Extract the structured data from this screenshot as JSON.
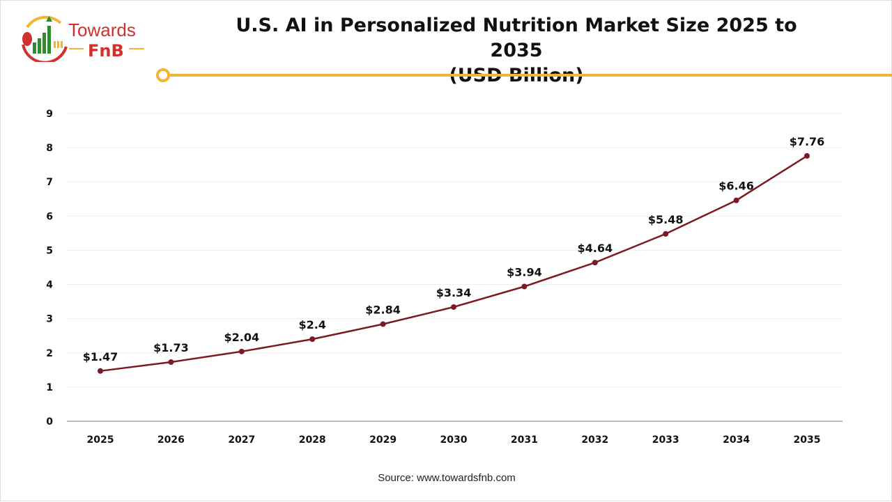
{
  "logo": {
    "text_top": "Towards",
    "text_bottom": "FnB"
  },
  "title_line1": "U.S. AI in Personalized Nutrition Market Size 2025 to 2035",
  "title_line2": "(USD Billion)",
  "source": "Source: www.towardsfnb.com",
  "colors": {
    "line": "#7b1a24",
    "accent": "#f2b533",
    "logo_red": "#d0312d",
    "logo_green": "#2e8b2e"
  },
  "chart_data": {
    "type": "line",
    "title": "U.S. AI in Personalized Nutrition Market Size 2025 to 2035 (USD Billion)",
    "xlabel": "",
    "ylabel": "",
    "categories": [
      "2025",
      "2026",
      "2027",
      "2028",
      "2029",
      "2030",
      "2031",
      "2032",
      "2033",
      "2034",
      "2035"
    ],
    "values": [
      1.47,
      1.73,
      2.04,
      2.4,
      2.84,
      3.34,
      3.94,
      4.64,
      5.48,
      6.46,
      7.76
    ],
    "data_labels": [
      "$1.47",
      "$1.73",
      "$2.04",
      "$2.4",
      "$2.84",
      "$3.34",
      "$3.94",
      "$4.64",
      "$5.48",
      "$6.46",
      "$7.76"
    ],
    "ylim": [
      0,
      9
    ],
    "yticks": [
      0,
      1,
      2,
      3,
      4,
      5,
      6,
      7,
      8,
      9
    ],
    "grid": true,
    "legend": "none"
  }
}
